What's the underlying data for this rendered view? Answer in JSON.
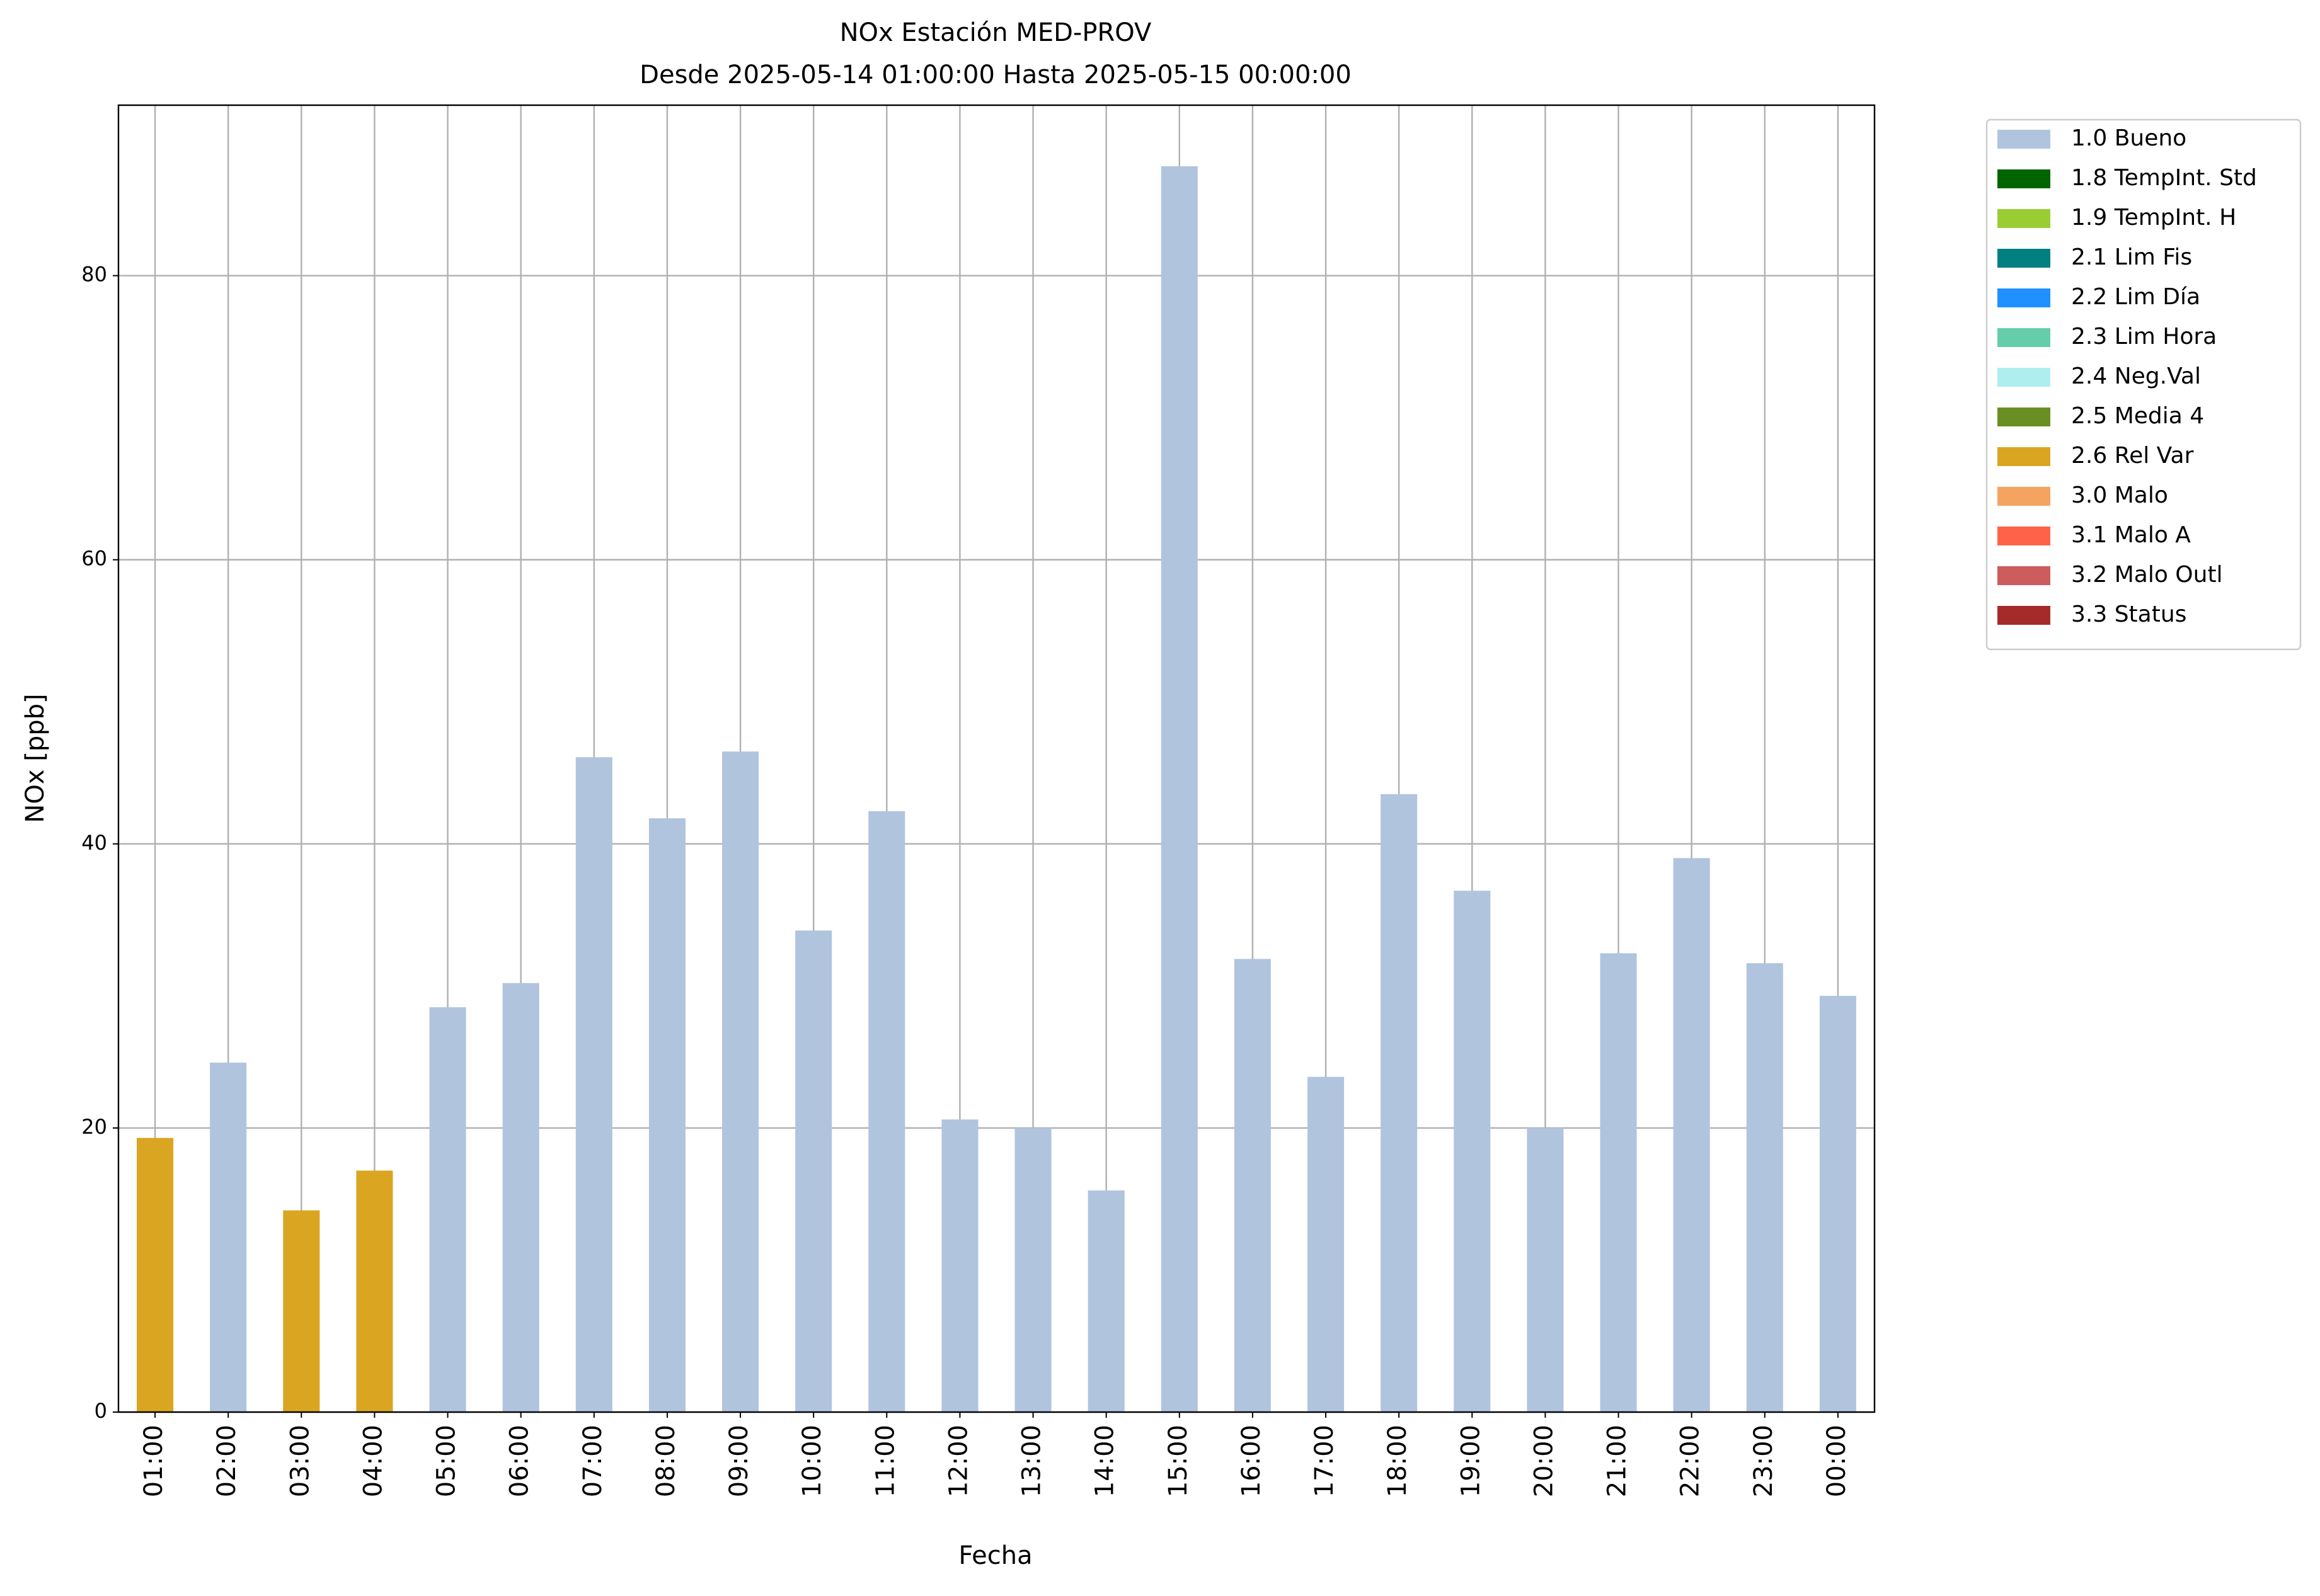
{
  "chart_data": {
    "type": "bar",
    "title": "NOx Estación MED-PROV",
    "subtitle": "Desde 2025-05-14 01:00:00 Hasta 2025-05-15 00:00:00",
    "x_label": "Fecha",
    "y_label": "NOx [ppb]",
    "categories": [
      "01:00",
      "02:00",
      "03:00",
      "04:00",
      "05:00",
      "06:00",
      "07:00",
      "08:00",
      "09:00",
      "10:00",
      "11:00",
      "12:00",
      "13:00",
      "14:00",
      "15:00",
      "16:00",
      "17:00",
      "18:00",
      "19:00",
      "20:00",
      "21:00",
      "22:00",
      "23:00",
      "00:00"
    ],
    "series": [
      {
        "name": "1.0 Bueno",
        "color": "#b0c4de",
        "values": [
          null,
          24.6,
          null,
          null,
          28.5,
          30.2,
          46.1,
          41.8,
          46.5,
          33.9,
          42.3,
          20.6,
          20.0,
          15.6,
          87.7,
          31.9,
          23.6,
          43.5,
          36.7,
          20.0,
          32.3,
          39.0,
          31.6,
          29.3
        ]
      },
      {
        "name": "1.8 TempInt. Std",
        "color": "#006400",
        "values": [
          null,
          null,
          null,
          null,
          null,
          null,
          null,
          null,
          null,
          null,
          null,
          null,
          null,
          null,
          null,
          null,
          null,
          null,
          null,
          null,
          null,
          null,
          null,
          null
        ]
      },
      {
        "name": "1.9 TempInt. H",
        "color": "#9acd32",
        "values": [
          null,
          null,
          null,
          null,
          null,
          null,
          null,
          null,
          null,
          null,
          null,
          null,
          null,
          null,
          null,
          null,
          null,
          null,
          null,
          null,
          null,
          null,
          null,
          null
        ]
      },
      {
        "name": "2.1 Lim Fis",
        "color": "#008080",
        "values": [
          null,
          null,
          null,
          null,
          null,
          null,
          null,
          null,
          null,
          null,
          null,
          null,
          null,
          null,
          null,
          null,
          null,
          null,
          null,
          null,
          null,
          null,
          null,
          null
        ]
      },
      {
        "name": "2.2 Lim Día",
        "color": "#1e90ff",
        "values": [
          null,
          null,
          null,
          null,
          null,
          null,
          null,
          null,
          null,
          null,
          null,
          null,
          null,
          null,
          null,
          null,
          null,
          null,
          null,
          null,
          null,
          null,
          null,
          null
        ]
      },
      {
        "name": "2.3 Lim Hora",
        "color": "#66cdaa",
        "values": [
          null,
          null,
          null,
          null,
          null,
          null,
          null,
          null,
          null,
          null,
          null,
          null,
          null,
          null,
          null,
          null,
          null,
          null,
          null,
          null,
          null,
          null,
          null,
          null
        ]
      },
      {
        "name": "2.4 Neg.Val",
        "color": "#afeeee",
        "values": [
          null,
          null,
          null,
          null,
          null,
          null,
          null,
          null,
          null,
          null,
          null,
          null,
          null,
          null,
          null,
          null,
          null,
          null,
          null,
          null,
          null,
          null,
          null,
          null
        ]
      },
      {
        "name": "2.5 Media 4",
        "color": "#6b8e23",
        "values": [
          null,
          null,
          null,
          null,
          null,
          null,
          null,
          null,
          null,
          null,
          null,
          null,
          null,
          null,
          null,
          null,
          null,
          null,
          null,
          null,
          null,
          null,
          null,
          null
        ]
      },
      {
        "name": "2.6 Rel Var",
        "color": "#daa520",
        "values": [
          19.3,
          null,
          14.2,
          17.0,
          null,
          null,
          null,
          null,
          null,
          null,
          null,
          null,
          null,
          null,
          null,
          null,
          null,
          null,
          null,
          null,
          null,
          null,
          null,
          null
        ]
      },
      {
        "name": "3.0 Malo",
        "color": "#f4a460",
        "values": [
          null,
          null,
          null,
          null,
          null,
          null,
          null,
          null,
          null,
          null,
          null,
          null,
          null,
          null,
          null,
          null,
          null,
          null,
          null,
          null,
          null,
          null,
          null,
          null
        ]
      },
      {
        "name": "3.1 Malo A",
        "color": "#ff6347",
        "values": [
          null,
          null,
          null,
          null,
          null,
          null,
          null,
          null,
          null,
          null,
          null,
          null,
          null,
          null,
          null,
          null,
          null,
          null,
          null,
          null,
          null,
          null,
          null,
          null
        ]
      },
      {
        "name": "3.2 Malo Outl",
        "color": "#cd5c5c",
        "values": [
          null,
          null,
          null,
          null,
          null,
          null,
          null,
          null,
          null,
          null,
          null,
          null,
          null,
          null,
          null,
          null,
          null,
          null,
          null,
          null,
          null,
          null,
          null,
          null
        ]
      },
      {
        "name": "3.3 Status",
        "color": "#a52a2a",
        "values": [
          null,
          null,
          null,
          null,
          null,
          null,
          null,
          null,
          null,
          null,
          null,
          null,
          null,
          null,
          null,
          null,
          null,
          null,
          null,
          null,
          null,
          null,
          null,
          null
        ]
      }
    ],
    "ylim": [
      0,
      92
    ],
    "yticks": [
      0,
      20,
      40,
      60,
      80
    ],
    "grid": true
  }
}
